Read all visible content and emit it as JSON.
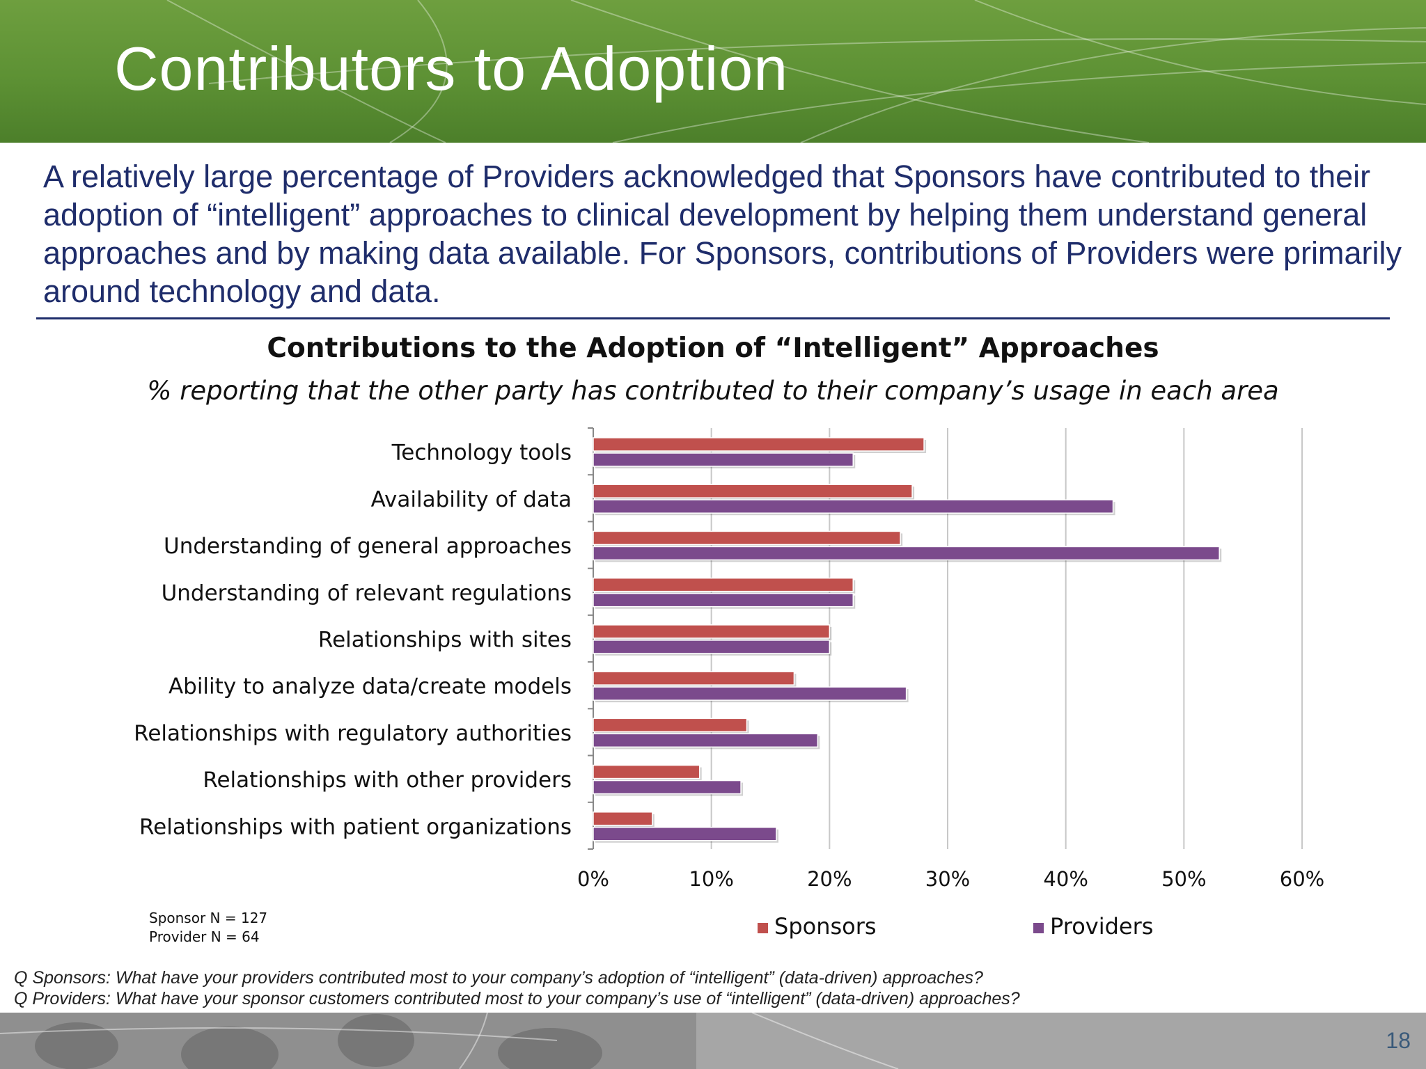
{
  "slide": {
    "title": "Contributors to Adoption",
    "intro": "A relatively large percentage of Providers acknowledged that Sponsors have contributed to their adoption of “intelligent” approaches to clinical development by helping them understand general approaches and by making data available. For Sponsors, contributions of Providers were primarily around technology and data.",
    "notes": [
      "Sponsor N = 127",
      "Provider N = 64"
    ],
    "questions": [
      "Q Sponsors: What have your providers contributed most to your company’s adoption of “intelligent” (data-driven) approaches?",
      "Q Providers: What have your sponsor customers contributed most to your company’s use of “intelligent” (data-driven) approaches?"
    ],
    "page_number": "18"
  },
  "chart_data": {
    "type": "bar",
    "orientation": "horizontal",
    "title": "Contributions to the Adoption of “Intelligent” Approaches",
    "subtitle": "% reporting that the other party has contributed to their company’s usage in each area",
    "categories": [
      "Technology tools",
      "Availability of data",
      "Understanding of general approaches",
      "Understanding of relevant regulations",
      "Relationships with sites",
      "Ability to analyze data/create models",
      "Relationships with regulatory authorities",
      "Relationships with other providers",
      "Relationships with patient organizations"
    ],
    "series": [
      {
        "name": "Sponsors",
        "color": "#c0504d",
        "values": [
          28,
          27,
          26,
          22,
          20,
          17,
          13,
          9,
          5
        ]
      },
      {
        "name": "Providers",
        "color": "#7b4a8c",
        "values": [
          22,
          44,
          53,
          22,
          20,
          26.5,
          19,
          12.5,
          15.5
        ]
      }
    ],
    "xlim": [
      0,
      60
    ],
    "xticks": [
      0,
      10,
      20,
      30,
      40,
      50,
      60
    ],
    "xtick_format": "%",
    "grid": true,
    "legend_position": "bottom"
  }
}
